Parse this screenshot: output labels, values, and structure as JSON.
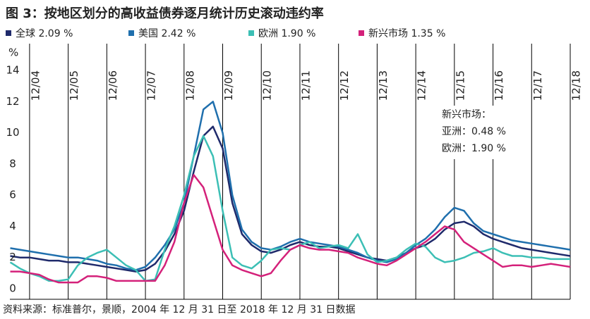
{
  "chart_data": {
    "type": "line",
    "title": "图 3：按地区划分的高收益债券逐月统计历史滚动违约率",
    "y_label": "%",
    "source": "资料来源：标准普尔，景顺，2004 年 12 月 31 日至 2018 年 12 月 31 日数据",
    "annotation": [
      "新兴市场：",
      "亚洲：0.48 %",
      "欧洲：1.90 %"
    ],
    "x": [
      2004.42,
      2004.67,
      2004.92,
      2005.17,
      2005.42,
      2005.67,
      2005.92,
      2006.17,
      2006.42,
      2006.67,
      2006.92,
      2007.17,
      2007.42,
      2007.67,
      2007.92,
      2008.17,
      2008.42,
      2008.67,
      2008.92,
      2009.17,
      2009.42,
      2009.67,
      2009.92,
      2010.17,
      2010.42,
      2010.67,
      2010.92,
      2011.17,
      2011.42,
      2011.67,
      2011.92,
      2012.17,
      2012.42,
      2012.67,
      2012.92,
      2013.17,
      2013.42,
      2013.67,
      2013.92,
      2014.17,
      2014.42,
      2014.67,
      2014.92,
      2015.17,
      2015.42,
      2015.67,
      2015.92,
      2016.17,
      2016.42,
      2016.67,
      2016.92,
      2017.17,
      2017.42,
      2017.67,
      2017.92,
      2018.17,
      2018.42,
      2018.67,
      2018.92
    ],
    "series": [
      {
        "name": "全球 2.09 %",
        "color": "#1f2a6b",
        "values": [
          2.1,
          2.0,
          2.0,
          1.9,
          1.8,
          1.8,
          1.7,
          1.7,
          1.6,
          1.5,
          1.4,
          1.3,
          1.2,
          1.1,
          1.2,
          1.6,
          2.4,
          3.5,
          5.0,
          7.5,
          9.8,
          10.4,
          9.0,
          5.5,
          3.5,
          2.8,
          2.4,
          2.3,
          2.5,
          2.8,
          3.0,
          2.8,
          2.7,
          2.7,
          2.6,
          2.4,
          2.2,
          2.0,
          1.9,
          1.8,
          2.0,
          2.3,
          2.6,
          2.8,
          3.2,
          3.8,
          4.2,
          4.3,
          4.0,
          3.5,
          3.2,
          3.0,
          2.8,
          2.6,
          2.5,
          2.4,
          2.3,
          2.2,
          2.1
        ]
      },
      {
        "name": "美国 2.42 %",
        "color": "#1f6fad",
        "values": [
          2.6,
          2.5,
          2.4,
          2.3,
          2.2,
          2.1,
          2.0,
          2.0,
          1.9,
          1.8,
          1.6,
          1.5,
          1.3,
          1.2,
          1.4,
          2.0,
          2.8,
          3.8,
          5.5,
          8.5,
          11.5,
          12.0,
          10.0,
          6.0,
          3.8,
          3.0,
          2.6,
          2.5,
          2.7,
          3.0,
          3.2,
          3.0,
          2.9,
          2.8,
          2.7,
          2.5,
          2.3,
          2.0,
          1.8,
          1.7,
          1.9,
          2.3,
          2.8,
          3.2,
          3.8,
          4.6,
          5.2,
          5.0,
          4.2,
          3.7,
          3.5,
          3.3,
          3.1,
          3.0,
          2.9,
          2.8,
          2.7,
          2.6,
          2.5
        ]
      },
      {
        "name": "欧洲 1.90 %",
        "color": "#3cbfb5",
        "values": [
          1.7,
          1.3,
          1.0,
          0.8,
          0.5,
          0.5,
          0.6,
          1.5,
          2.0,
          2.3,
          2.5,
          2.0,
          1.5,
          1.2,
          0.5,
          0.6,
          2.5,
          4.0,
          6.0,
          8.5,
          9.8,
          8.5,
          5.0,
          2.0,
          1.5,
          1.3,
          1.8,
          2.5,
          2.6,
          2.5,
          2.8,
          3.0,
          2.6,
          2.7,
          2.8,
          2.6,
          3.5,
          2.2,
          1.7,
          1.8,
          2.0,
          2.5,
          2.9,
          2.7,
          2.0,
          1.7,
          1.8,
          2.0,
          2.3,
          2.4,
          2.6,
          2.3,
          2.1,
          2.1,
          2.0,
          2.0,
          1.9,
          1.9,
          1.9
        ]
      },
      {
        "name": "新兴市场 1.35 %",
        "color": "#d4217a",
        "values": [
          1.1,
          1.1,
          1.0,
          0.9,
          0.6,
          0.4,
          0.4,
          0.4,
          0.8,
          0.8,
          0.7,
          0.5,
          0.5,
          0.5,
          0.5,
          0.5,
          1.5,
          3.0,
          5.5,
          7.3,
          6.5,
          4.5,
          2.5,
          1.5,
          1.2,
          1.0,
          0.8,
          1.0,
          1.8,
          2.5,
          2.8,
          2.6,
          2.5,
          2.5,
          2.4,
          2.3,
          2.0,
          1.8,
          1.6,
          1.5,
          1.8,
          2.2,
          2.6,
          3.0,
          3.5,
          4.0,
          3.8,
          3.0,
          2.6,
          2.2,
          1.8,
          1.4,
          1.5,
          1.5,
          1.4,
          1.5,
          1.6,
          1.5,
          1.4
        ]
      }
    ],
    "xlim": [
      2004.41,
      2018.92
    ],
    "xticks": [
      {
        "value": 2004.92,
        "label": "12/04"
      },
      {
        "value": 2005.92,
        "label": "12/05"
      },
      {
        "value": 2006.92,
        "label": "12/06"
      },
      {
        "value": 2007.92,
        "label": "12/07"
      },
      {
        "value": 2008.92,
        "label": "12/08"
      },
      {
        "value": 2009.92,
        "label": "12/09"
      },
      {
        "value": 2010.92,
        "label": "12/10"
      },
      {
        "value": 2011.92,
        "label": "12/11"
      },
      {
        "value": 2012.92,
        "label": "12/12"
      },
      {
        "value": 2013.92,
        "label": "12/13"
      },
      {
        "value": 2014.92,
        "label": "12/14"
      },
      {
        "value": 2015.92,
        "label": "12/15"
      },
      {
        "value": 2016.92,
        "label": "12/16"
      },
      {
        "value": 2017.92,
        "label": "12/17"
      },
      {
        "value": 2018.92,
        "label": "12/18"
      }
    ],
    "ylim": [
      0,
      14
    ],
    "yticks": [
      0,
      2,
      4,
      6,
      8,
      10,
      12,
      14
    ],
    "grid": true
  }
}
